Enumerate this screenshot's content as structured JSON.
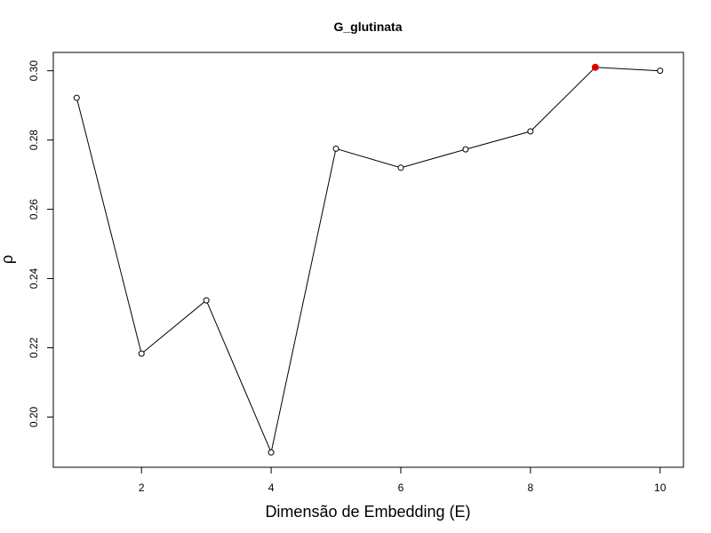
{
  "chart_data": {
    "type": "line",
    "title": "G_glutinata",
    "xlabel": "Dimensão de Embedding (E)",
    "ylabel": "ρ",
    "x": [
      1,
      2,
      3,
      4,
      5,
      6,
      7,
      8,
      9,
      10
    ],
    "y": [
      0.2922,
      0.2183,
      0.2337,
      0.1898,
      0.2775,
      0.272,
      0.2773,
      0.2825,
      0.301,
      0.3
    ],
    "x_ticks": [
      "2",
      "4",
      "6",
      "8",
      "10"
    ],
    "y_ticks": [
      "0.20",
      "0.22",
      "0.24",
      "0.26",
      "0.28",
      "0.30"
    ],
    "xlim": [
      0.64,
      10.36
    ],
    "ylim": [
      0.1855,
      0.3053
    ],
    "highlight_index": 8,
    "highlight_color": "#e00000",
    "line_color": "#000000",
    "marker": "open-circle",
    "grid": false,
    "legend": "none"
  }
}
